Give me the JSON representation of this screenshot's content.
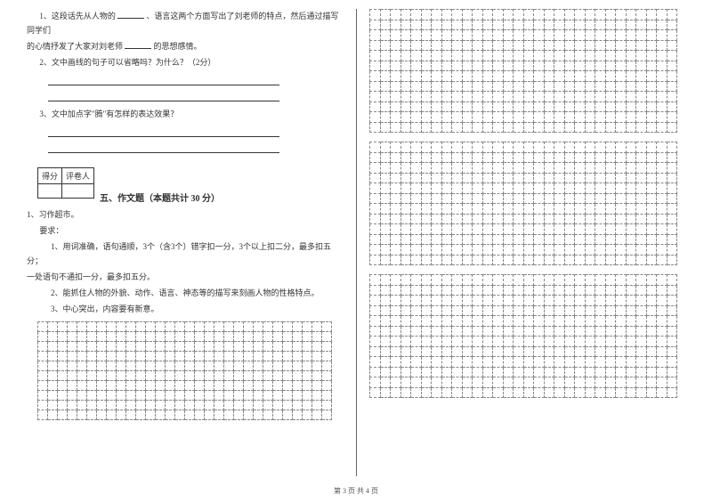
{
  "left": {
    "q1_a": "1、这段话先从人物的",
    "q1_b": "、语言这两个方面写出了刘老师的特点，然后通过描写同学们",
    "q1_c": "的心情抒发了大家对刘老师",
    "q1_d": "的思想感情。",
    "q2": "2、文中画线的句子可以省略吗？为什么？（2分）",
    "q3": "3、文中加点字\"腾\"有怎样的表达效果？",
    "score_l": "得分",
    "score_r": "评卷人",
    "section_title": "五、作文题（本题共计 30 分）",
    "p1": "1、习作超市。",
    "p2": "要求：",
    "p3": "1、用词准确，语句通顺，3个（含3个）错字扣一分，3个以上扣二分，最多扣五分；",
    "p4": "一处语句不通扣一分，最多扣五分。",
    "p5": "2、能抓住人物的外貌、动作、语言、神态等的描写来刻画人物的性格特点。",
    "p6": "3、中心突出，内容要有新意。"
  },
  "footer": "第 3 页  共 4 页",
  "layout": {
    "left_grid_rows": 10,
    "left_grid_cols": 30,
    "right_grid_rows": 12,
    "right_grid_cols": 30,
    "right_blocks": 3,
    "grid_border": "#888888",
    "text_color": "#333333",
    "bg": "#ffffff"
  }
}
